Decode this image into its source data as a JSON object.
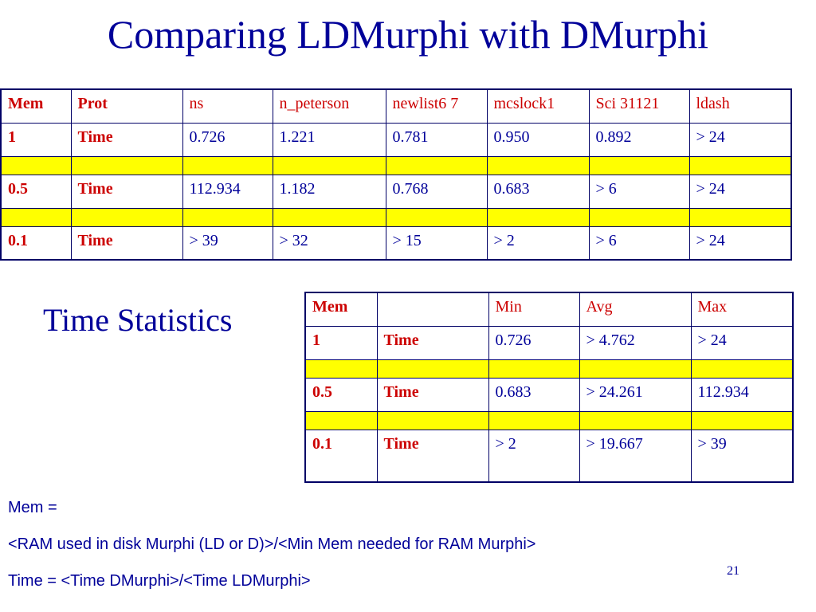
{
  "title": "Comparing LDMurphi with DMurphi",
  "table1": {
    "header": [
      "Mem",
      "Prot",
      "ns",
      "n_peterson",
      "newlist6 7",
      "mcslock1",
      "Sci 31121",
      "ldash"
    ],
    "rows": [
      {
        "mem": "1",
        "label": "Time",
        "values": [
          "0.726",
          "1.221",
          "0.781",
          "0.950",
          "0.892",
          "> 24"
        ]
      },
      {
        "mem": "0.5",
        "label": "Time",
        "values": [
          "112.934",
          "1.182",
          "0.768",
          "0.683",
          "> 6",
          "> 24"
        ]
      },
      {
        "mem": "0.1",
        "label": "Time",
        "values": [
          "> 39",
          "> 32",
          "> 15",
          "> 2",
          "> 6",
          "> 24"
        ]
      }
    ]
  },
  "stats_label": "Time Statistics",
  "table2": {
    "header": [
      "Mem",
      "",
      "Min",
      "Avg",
      "Max"
    ],
    "rows": [
      {
        "mem": "1",
        "label": "Time",
        "values": [
          "0.726",
          "> 4.762",
          "> 24"
        ]
      },
      {
        "mem": "0.5",
        "label": "Time",
        "values": [
          "0.683",
          "> 24.261",
          "112.934"
        ]
      },
      {
        "mem": "0.1",
        "label": "Time",
        "values": [
          "> 2",
          "> 19.667",
          "> 39"
        ]
      }
    ]
  },
  "notes": {
    "line1": "Mem =",
    "line2": "<RAM used in disk Murphi (LD or D)>/<Min Mem needed for RAM Murphi>",
    "line3": "Time = <Time DMurphi>/<Time LDMurphi>"
  },
  "page_number": "21",
  "colors": {
    "text": "#000099",
    "accent": "#cc0000",
    "separator": "#ffff00"
  }
}
